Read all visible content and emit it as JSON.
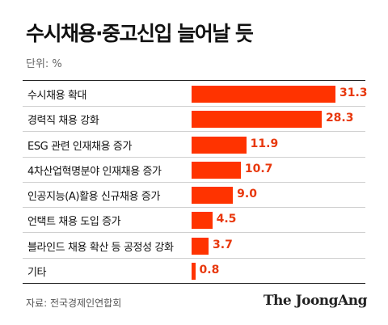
{
  "title": "수시채용·중고신입 늘어날 듯",
  "unit": "단위: %",
  "source": "자료: 전국경제인연합회",
  "brand": "The JoongAng",
  "colors": {
    "bar": "#ff3300",
    "value_text": "#e8380d"
  },
  "chart_data": {
    "type": "bar",
    "orientation": "horizontal",
    "categories": [
      "수시채용 확대",
      "경력직 채용 강화",
      " ESG 관련 인재채용 증가",
      "4차산업혁명분야 인재채용 증가",
      "인공지능(A)활용 신규채용 증가",
      "언택트 채용 도입 증가",
      "블라인드 채용 확산 등 공정성 강화",
      "기타"
    ],
    "values": [
      31.3,
      28.3,
      11.9,
      10.7,
      9.0,
      4.5,
      3.7,
      0.8
    ],
    "value_labels": [
      "31.3",
      "28.3",
      "11.9",
      "10.7",
      "9.0",
      "4.5",
      "3.7",
      "0.8"
    ],
    "title": "수시채용·중고신입 늘어날 듯",
    "xlim": [
      0,
      31.3
    ]
  }
}
